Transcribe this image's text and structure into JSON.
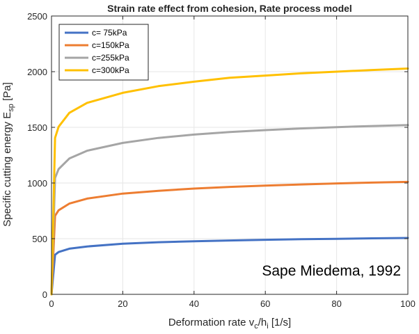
{
  "chart_data": {
    "type": "line",
    "title": "Strain rate effect from cohesion, Rate process model",
    "xlabel": {
      "main": "Deformation rate v",
      "sub1": "c",
      "mid": "/h",
      "sub2": "i",
      "tail": " [1/s]"
    },
    "ylabel": {
      "main": "Specific cutting energy E",
      "sub": "sp",
      "tail": " [Pa]"
    },
    "xlim": [
      0,
      100
    ],
    "ylim": [
      0,
      2500
    ],
    "xticks": [
      0,
      20,
      40,
      60,
      80,
      100
    ],
    "yticks": [
      0,
      500,
      1000,
      1500,
      2000,
      2500
    ],
    "xtick_labels": [
      "0",
      "20",
      "40",
      "60",
      "80",
      "100"
    ],
    "ytick_labels": [
      "0",
      "500",
      "1000",
      "1500",
      "2000",
      "2500"
    ],
    "grid": true,
    "legend_position": "top-left",
    "annotation": "Sape Miedema, 1992",
    "x": [
      0,
      1,
      2,
      5,
      10,
      20,
      30,
      40,
      50,
      60,
      70,
      80,
      90,
      100
    ],
    "series": [
      {
        "name": "c= 75kPa",
        "color": "#4472C4",
        "values": [
          0,
          355,
          380,
          410,
          430,
          455,
          468,
          477,
          484,
          490,
          495,
          499,
          503,
          506
        ]
      },
      {
        "name": "c=150kPa",
        "color": "#ED7D31",
        "values": [
          0,
          705,
          755,
          815,
          860,
          905,
          930,
          950,
          965,
          977,
          987,
          996,
          1004,
          1010
        ]
      },
      {
        "name": "c=255kPa",
        "color": "#A5A5A5",
        "values": [
          0,
          1045,
          1125,
          1220,
          1290,
          1360,
          1405,
          1435,
          1458,
          1475,
          1490,
          1502,
          1512,
          1520
        ]
      },
      {
        "name": "c=300kPa",
        "color": "#FFC000",
        "values": [
          0,
          1405,
          1505,
          1630,
          1720,
          1810,
          1870,
          1910,
          1945,
          1965,
          1985,
          2000,
          2015,
          2028
        ]
      }
    ]
  }
}
